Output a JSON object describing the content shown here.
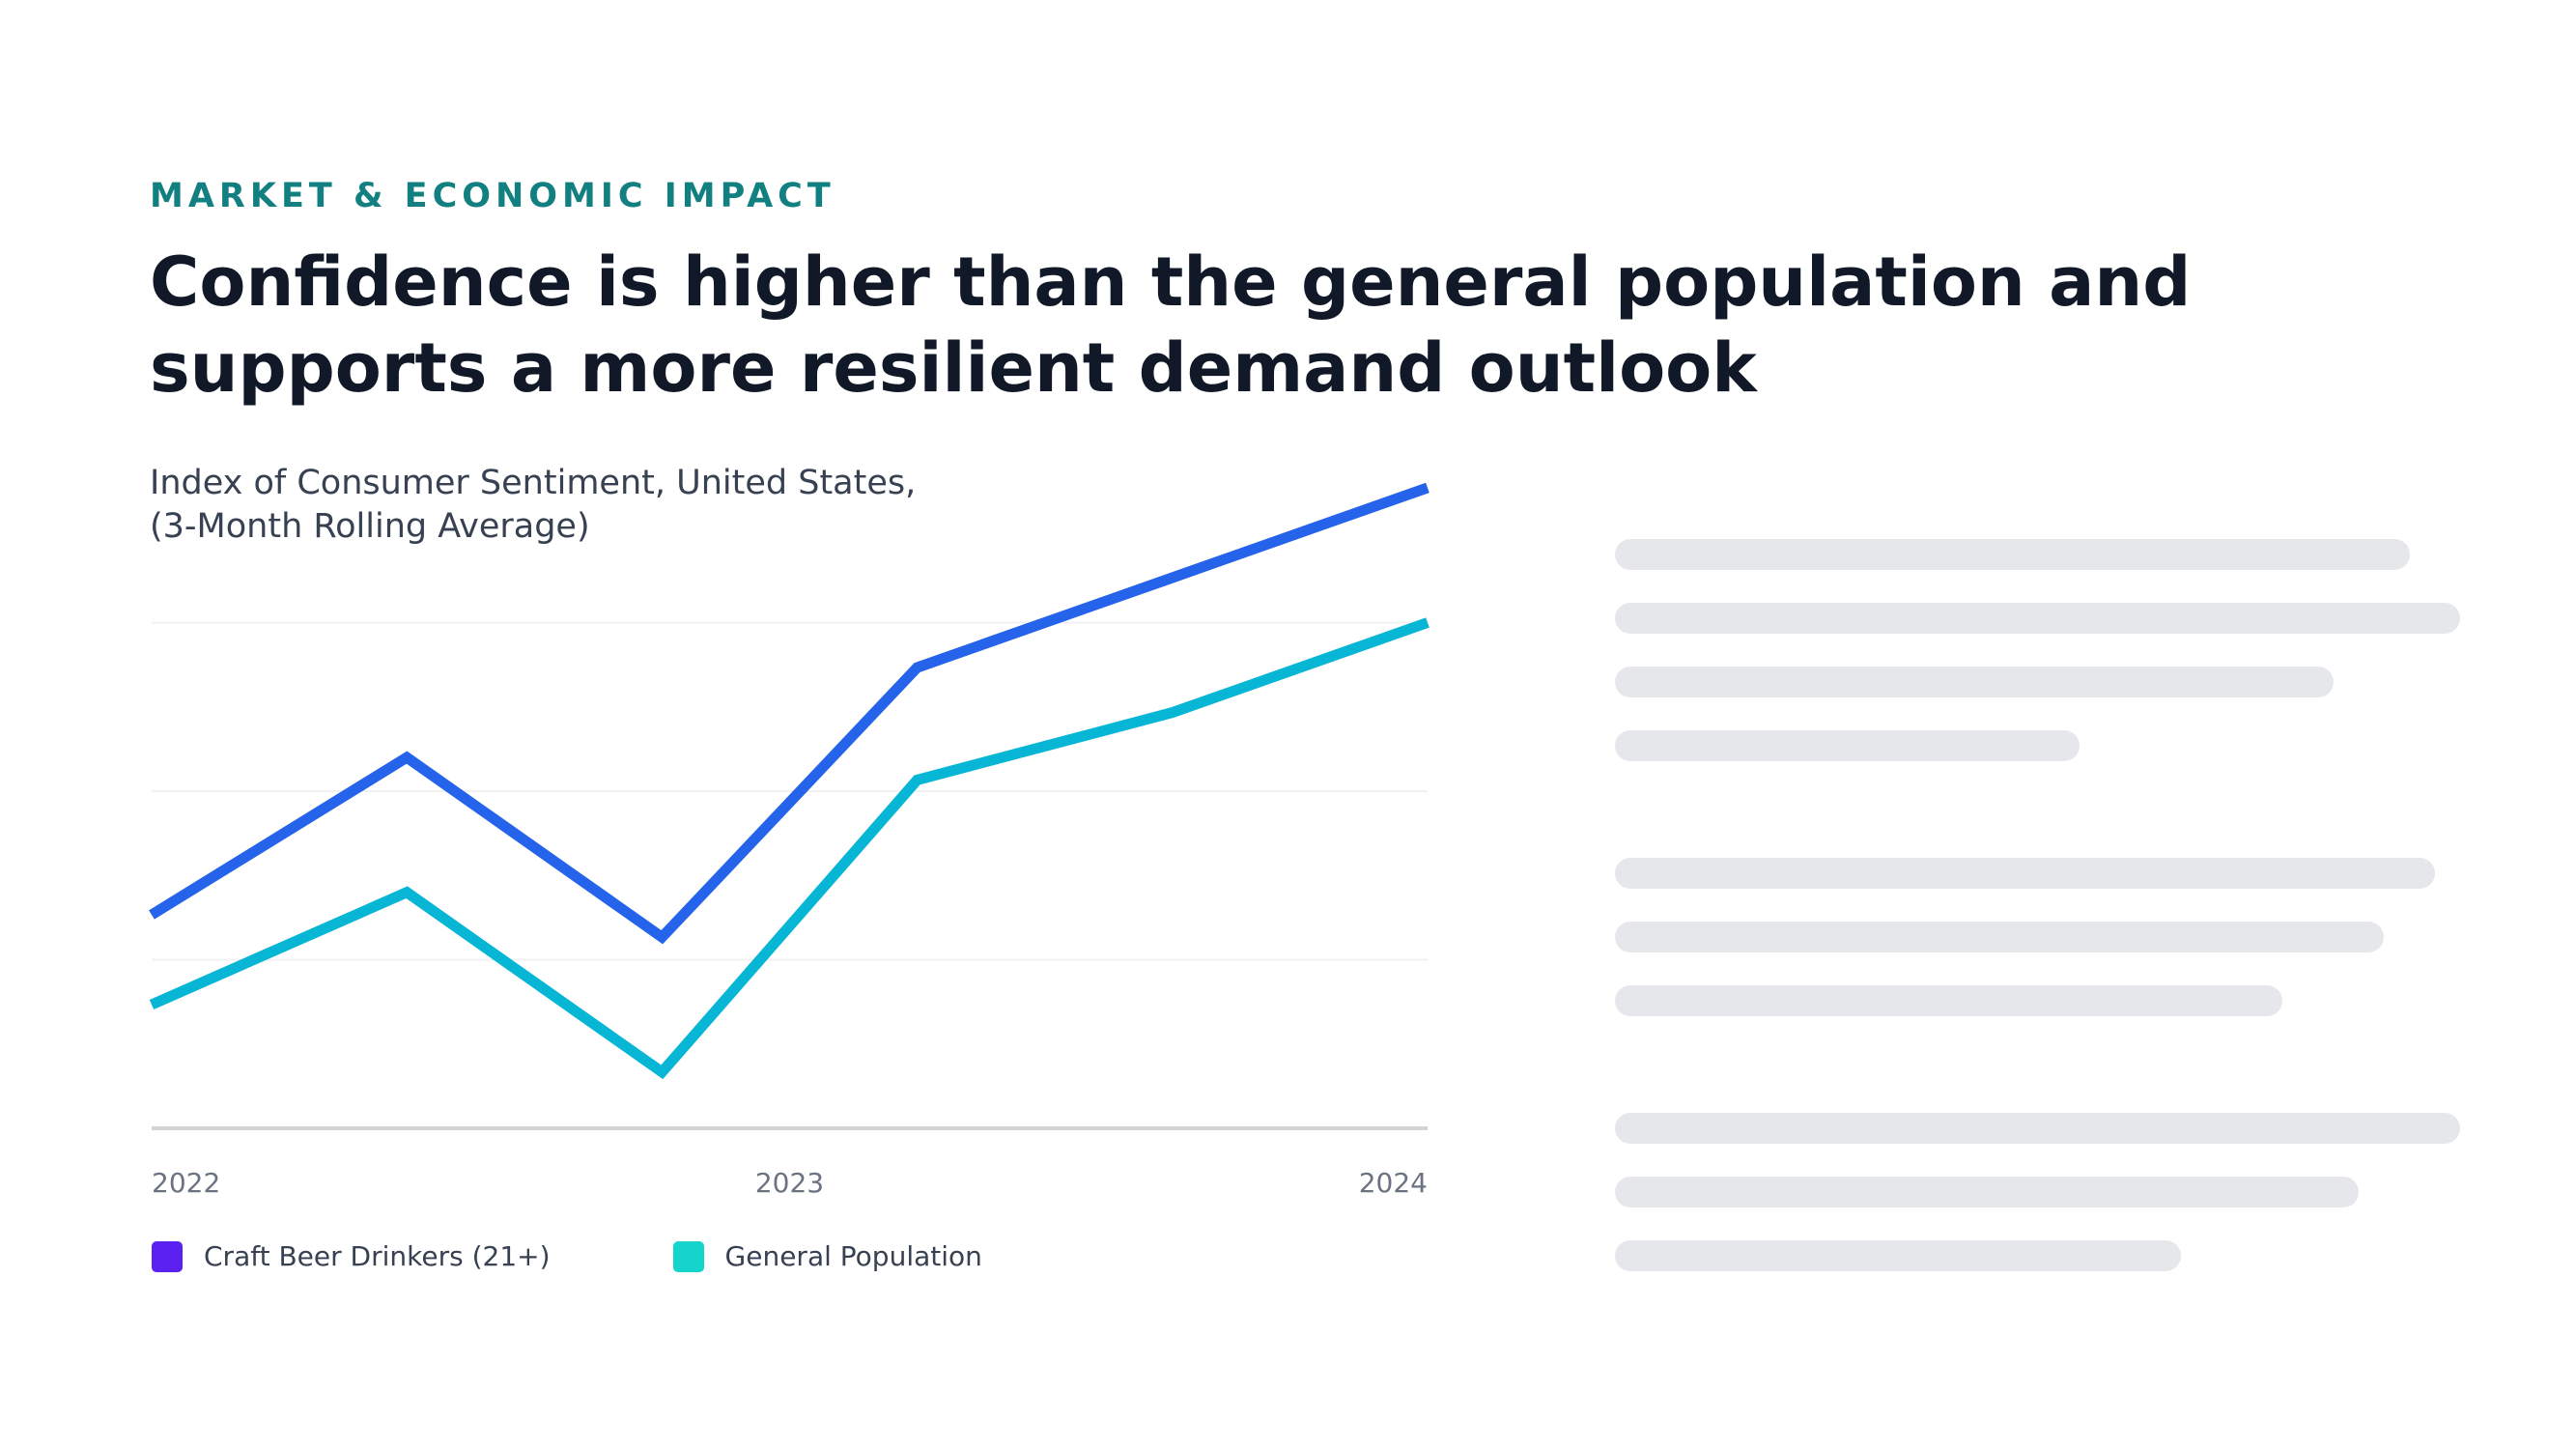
{
  "header": {
    "eyebrow": "MARKET & ECONOMIC IMPACT",
    "title": "Confidence is higher than the general population and supports a more resilient demand outlook"
  },
  "chart_data": {
    "type": "line",
    "title_lines": [
      "Index of Consumer Sentiment, United States,",
      "(3-Month Rolling Average)"
    ],
    "x": [
      0,
      1,
      2,
      3,
      4,
      5
    ],
    "x_ticks": [
      {
        "at": 0,
        "label": "2022"
      },
      {
        "at": 2.5,
        "label": "2023"
      },
      {
        "at": 5,
        "label": "2024"
      }
    ],
    "ylim": [
      40,
      100
    ],
    "y_gridlines": [
      55,
      70,
      85
    ],
    "grid": "horizontal",
    "legend_position": "bottom-left",
    "series": [
      {
        "name": "Craft Beer Drinkers (21+)",
        "color": "#2563EB",
        "legend_color": "#5B21F0",
        "values": [
          59,
          73,
          57,
          81,
          89,
          97
        ]
      },
      {
        "name": "General Population",
        "color": "#06B6D4",
        "legend_color": "#14D4CC",
        "values": [
          51,
          61,
          45,
          71,
          77,
          85
        ]
      }
    ]
  },
  "text_placeholders": {
    "color": "#E6E7EB",
    "groups": [
      [
        0.94,
        1.0,
        0.85,
        0.55
      ],
      [
        0.97,
        0.91,
        0.79
      ],
      [
        1.0,
        0.88,
        0.67
      ]
    ]
  }
}
